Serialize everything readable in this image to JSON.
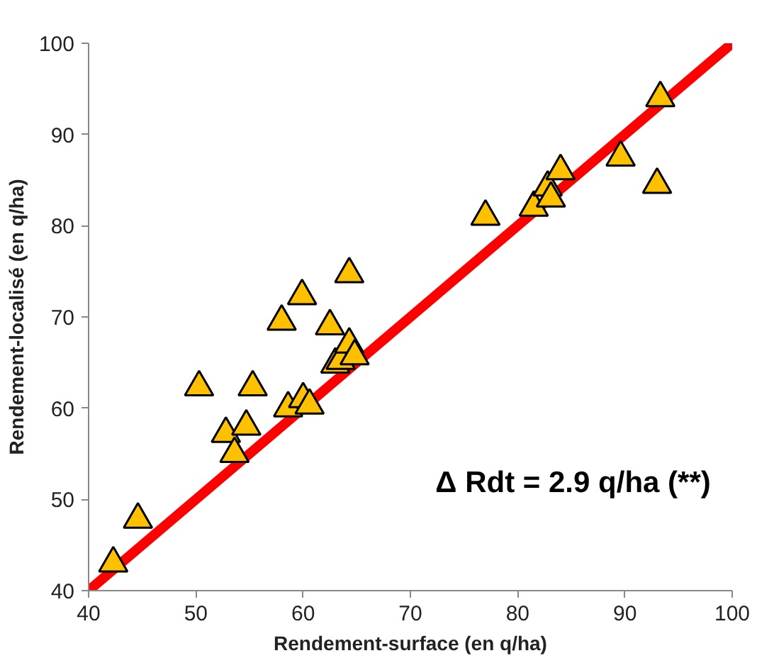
{
  "chart_data": {
    "type": "scatter",
    "xlabel": "Rendement-surface (en q/ha)",
    "ylabel": "Rendement-localisé (en q/ha)",
    "xlim": [
      40,
      100
    ],
    "ylim": [
      40,
      100
    ],
    "xticks": [
      40,
      50,
      60,
      70,
      80,
      90,
      100
    ],
    "yticks": [
      40,
      50,
      60,
      70,
      80,
      90,
      100
    ],
    "grid": false,
    "series": [
      {
        "type": "line",
        "color": "#ff0000",
        "x": [
          40,
          100
        ],
        "values": [
          40,
          100
        ]
      },
      {
        "marker": "triangle",
        "color": "#ffc000",
        "x": [
          42.3,
          44.6,
          50.3,
          52.8,
          53.6,
          55.3,
          54.7,
          58.0,
          59.9,
          58.6,
          60.0,
          60.6,
          64.3,
          62.5,
          63.0,
          63.5,
          64.3,
          64.8,
          77.0,
          81.5,
          82.8,
          83.1,
          84.0,
          89.6,
          93.0,
          93.3
        ],
        "values": [
          43.0,
          47.8,
          62.3,
          57.2,
          55.0,
          62.3,
          58.0,
          69.5,
          72.3,
          60.0,
          61.0,
          60.3,
          74.7,
          69.0,
          64.8,
          65.2,
          67.0,
          65.7,
          81.0,
          82.0,
          84.2,
          83.0,
          86.0,
          87.5,
          84.5,
          94.0
        ]
      }
    ],
    "annotations": [
      "Δ Rdt = 2.9 q/ha (**)"
    ]
  }
}
